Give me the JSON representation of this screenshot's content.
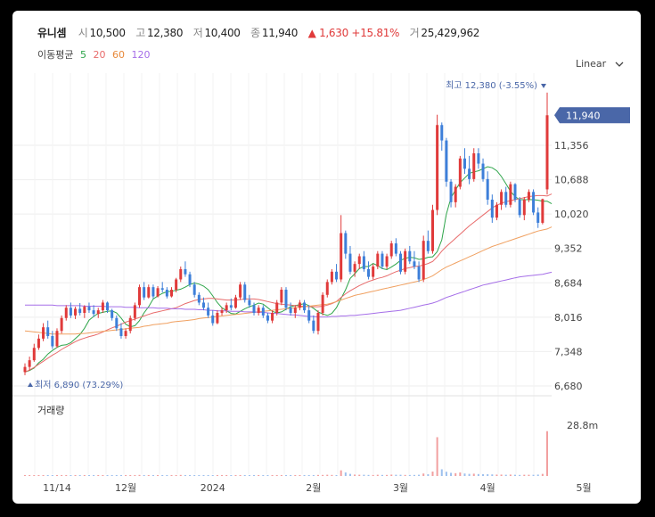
{
  "header": {
    "name": "유니셈",
    "open_label": "시",
    "open": "10,500",
    "high_label": "고",
    "high": "12,380",
    "low_label": "저",
    "low": "10,400",
    "close_label": "종",
    "close": "11,940",
    "change": "▲ 1,630 +15.81%",
    "volume_label": "거",
    "volume": "25,429,962"
  },
  "ma_legend": {
    "label": "이동평균",
    "p5": "5",
    "p20": "20",
    "p60": "60",
    "p120": "120"
  },
  "scale_select": {
    "value": "Linear"
  },
  "colors": {
    "up": "#e03a3a",
    "down": "#3d7fd9",
    "ma5": "#2ea54a",
    "ma20": "#e86b6b",
    "ma60": "#f0a060",
    "ma120": "#a56ee8",
    "badge": "#4a67a8"
  },
  "icons": {
    "high_marker": "triangle-down-icon",
    "low_marker": "triangle-up-icon",
    "dropdown": "chevron-down-icon"
  },
  "chart_data": {
    "type": "candlestick",
    "price_axis": {
      "ticks": [
        6680,
        7348,
        8016,
        8684,
        9352,
        10020,
        10688,
        11356
      ],
      "tick_labels": [
        "6,680",
        "7,348",
        "8,016",
        "8,684",
        "9,352",
        "10,020",
        "10,688",
        "11,356"
      ],
      "range": [
        6680,
        12390
      ]
    },
    "current_price": {
      "value": 11940,
      "label": "11,940"
    },
    "annotations": {
      "high": "최고 12,380 (-3.55%)",
      "low": "최저 6,890 (73.29%)"
    },
    "x_axis": {
      "labels": [
        "11/14",
        "12월",
        "2024",
        "2월",
        "3월",
        "4월",
        "5월"
      ],
      "label_index": [
        7,
        22,
        41,
        63,
        82,
        101,
        122
      ]
    },
    "volume_panel": {
      "title": "거래량",
      "tick_label": "28.8m",
      "max": 28.8
    },
    "ohlc": [
      [
        6950,
        7120,
        6890,
        7050
      ],
      [
        7050,
        7250,
        6980,
        7180
      ],
      [
        7180,
        7500,
        7150,
        7420
      ],
      [
        7420,
        7680,
        7380,
        7600
      ],
      [
        7600,
        7900,
        7550,
        7820
      ],
      [
        7820,
        7950,
        7600,
        7650
      ],
      [
        7650,
        7750,
        7400,
        7450
      ],
      [
        7450,
        7800,
        7420,
        7750
      ],
      [
        7750,
        8050,
        7700,
        8000
      ],
      [
        8000,
        8250,
        7950,
        8200
      ],
      [
        8200,
        8300,
        8000,
        8050
      ],
      [
        8050,
        8220,
        7980,
        8180
      ],
      [
        8180,
        8290,
        8050,
        8100
      ],
      [
        8100,
        8250,
        8000,
        8220
      ],
      [
        8220,
        8300,
        8100,
        8150
      ],
      [
        8150,
        8250,
        8020,
        8080
      ],
      [
        8080,
        8200,
        8000,
        8150
      ],
      [
        8150,
        8350,
        8100,
        8300
      ],
      [
        8300,
        8320,
        8100,
        8150
      ],
      [
        8150,
        8180,
        7950,
        8000
      ],
      [
        8000,
        8050,
        7750,
        7800
      ],
      [
        7800,
        7900,
        7600,
        7650
      ],
      [
        7650,
        7800,
        7600,
        7750
      ],
      [
        7750,
        8050,
        7700,
        8000
      ],
      [
        8000,
        8300,
        7950,
        8250
      ],
      [
        8250,
        8650,
        8200,
        8600
      ],
      [
        8600,
        8700,
        8350,
        8400
      ],
      [
        8400,
        8650,
        8380,
        8600
      ],
      [
        8600,
        8650,
        8380,
        8420
      ],
      [
        8420,
        8620,
        8400,
        8580
      ],
      [
        8580,
        8700,
        8500,
        8550
      ],
      [
        8550,
        8600,
        8380,
        8420
      ],
      [
        8420,
        8600,
        8400,
        8550
      ],
      [
        8550,
        8780,
        8500,
        8750
      ],
      [
        8750,
        9000,
        8700,
        8950
      ],
      [
        8950,
        9100,
        8800,
        8850
      ],
      [
        8850,
        8900,
        8600,
        8650
      ],
      [
        8650,
        8700,
        8400,
        8450
      ],
      [
        8450,
        8500,
        8250,
        8300
      ],
      [
        8300,
        8400,
        8150,
        8200
      ],
      [
        8200,
        8300,
        8000,
        8050
      ],
      [
        8050,
        8150,
        7850,
        7900
      ],
      [
        7900,
        8150,
        7880,
        8100
      ],
      [
        8100,
        8200,
        8050,
        8150
      ],
      [
        8150,
        8300,
        8100,
        8250
      ],
      [
        8250,
        8380,
        8150,
        8200
      ],
      [
        8200,
        8450,
        8180,
        8400
      ],
      [
        8400,
        8700,
        8350,
        8650
      ],
      [
        8650,
        8700,
        8300,
        8350
      ],
      [
        8350,
        8450,
        8200,
        8250
      ],
      [
        8250,
        8300,
        8050,
        8100
      ],
      [
        8100,
        8250,
        8050,
        8200
      ],
      [
        8200,
        8250,
        8000,
        8050
      ],
      [
        8050,
        8100,
        7900,
        7950
      ],
      [
        7950,
        8150,
        7900,
        8100
      ],
      [
        8100,
        8350,
        8050,
        8300
      ],
      [
        8300,
        8600,
        8250,
        8550
      ],
      [
        8550,
        8600,
        8150,
        8200
      ],
      [
        8200,
        8300,
        8050,
        8100
      ],
      [
        8100,
        8250,
        8000,
        8200
      ],
      [
        8200,
        8350,
        8150,
        8300
      ],
      [
        8300,
        8350,
        8100,
        8150
      ],
      [
        8150,
        8250,
        7900,
        7950
      ],
      [
        7950,
        8050,
        7700,
        7750
      ],
      [
        7750,
        8150,
        7680,
        8100
      ],
      [
        8100,
        8500,
        8050,
        8450
      ],
      [
        8450,
        8750,
        8400,
        8700
      ],
      [
        8700,
        8950,
        8650,
        8900
      ],
      [
        8900,
        9050,
        8700,
        8750
      ],
      [
        8750,
        10000,
        8700,
        9650
      ],
      [
        9650,
        9700,
        9150,
        9250
      ],
      [
        9250,
        9400,
        8850,
        8900
      ],
      [
        8900,
        9100,
        8800,
        9050
      ],
      [
        9050,
        9250,
        8950,
        9200
      ],
      [
        9200,
        9300,
        8900,
        8950
      ],
      [
        8950,
        9100,
        8750,
        8800
      ],
      [
        8800,
        9050,
        8750,
        9000
      ],
      [
        9000,
        9300,
        8950,
        9250
      ],
      [
        9250,
        9300,
        8950,
        9000
      ],
      [
        9000,
        9250,
        8950,
        9200
      ],
      [
        9200,
        9500,
        9150,
        9450
      ],
      [
        9450,
        9550,
        9200,
        9250
      ],
      [
        9250,
        9300,
        8850,
        8900
      ],
      [
        8900,
        9350,
        8850,
        9300
      ],
      [
        9300,
        9400,
        9050,
        9100
      ],
      [
        9100,
        9300,
        8950,
        9000
      ],
      [
        9000,
        9100,
        8700,
        8750
      ],
      [
        8750,
        9600,
        8700,
        9500
      ],
      [
        9500,
        9700,
        9250,
        9300
      ],
      [
        9300,
        10200,
        9250,
        10100
      ],
      [
        10100,
        11950,
        10000,
        11750
      ],
      [
        11750,
        11800,
        11250,
        11450
      ],
      [
        11450,
        11500,
        10550,
        10650
      ],
      [
        10650,
        10700,
        10150,
        10250
      ],
      [
        10250,
        10600,
        10150,
        10550
      ],
      [
        10550,
        11150,
        10500,
        11100
      ],
      [
        11100,
        11300,
        10800,
        10900
      ],
      [
        10900,
        11150,
        10600,
        10700
      ],
      [
        10700,
        11300,
        10650,
        11200
      ],
      [
        11200,
        11300,
        10900,
        11000
      ],
      [
        11000,
        11100,
        10650,
        10700
      ],
      [
        10700,
        10850,
        10200,
        10300
      ],
      [
        10300,
        10400,
        9850,
        9950
      ],
      [
        9950,
        10250,
        9900,
        10200
      ],
      [
        10200,
        10500,
        10100,
        10450
      ],
      [
        10450,
        10550,
        10150,
        10200
      ],
      [
        10200,
        10650,
        10150,
        10600
      ],
      [
        10600,
        10620,
        10250,
        10300
      ],
      [
        10300,
        10350,
        9950,
        10000
      ],
      [
        10000,
        10350,
        9900,
        10300
      ],
      [
        10300,
        10500,
        10250,
        10450
      ],
      [
        10450,
        10500,
        10000,
        10050
      ],
      [
        10050,
        10150,
        9750,
        9850
      ],
      [
        9850,
        10320,
        9820,
        10310
      ],
      [
        10500,
        12380,
        10400,
        11940
      ]
    ],
    "volume": [
      0.3,
      0.4,
      0.5,
      0.4,
      0.5,
      0.4,
      0.3,
      0.4,
      0.5,
      0.4,
      0.3,
      0.3,
      0.3,
      0.3,
      0.3,
      0.2,
      0.2,
      0.3,
      0.3,
      0.3,
      0.4,
      0.3,
      0.3,
      0.4,
      0.5,
      0.6,
      0.5,
      0.4,
      0.4,
      0.4,
      0.3,
      0.3,
      0.3,
      0.4,
      0.6,
      0.5,
      0.4,
      0.4,
      0.3,
      0.3,
      0.3,
      0.3,
      0.3,
      0.2,
      0.3,
      0.3,
      0.4,
      0.5,
      0.4,
      0.3,
      0.3,
      0.3,
      0.3,
      0.3,
      0.3,
      0.4,
      0.5,
      0.4,
      0.3,
      0.3,
      0.3,
      0.3,
      0.4,
      0.5,
      0.6,
      0.6,
      0.7,
      0.6,
      0.5,
      3.2,
      2.0,
      1.2,
      0.8,
      0.7,
      0.7,
      0.6,
      0.6,
      0.7,
      0.6,
      0.6,
      0.8,
      0.7,
      0.7,
      0.6,
      0.6,
      0.6,
      0.7,
      1.4,
      1.0,
      2.5,
      22.0,
      3.8,
      2.4,
      1.8,
      1.6,
      2.0,
      1.4,
      1.2,
      1.3,
      1.1,
      1.0,
      1.0,
      0.9,
      0.8,
      0.8,
      0.7,
      0.8,
      0.7,
      0.6,
      0.7,
      0.7,
      0.7,
      0.8,
      1.2,
      25.4
    ],
    "ma_series": [
      {
        "name": "5",
        "values": [
          6950,
          6980,
          7030,
          7130,
          7200,
          7300,
          7370,
          7430,
          7470,
          7480,
          7520,
          7600,
          7680,
          7800,
          7960,
          8030,
          8090,
          8110,
          8130,
          8140,
          8100,
          8000,
          7880,
          7830,
          7850,
          7950,
          8100,
          8220,
          8370,
          8430,
          8480,
          8510,
          8520,
          8540,
          8560,
          8600,
          8650,
          8680,
          8660,
          8620,
          8550,
          8430,
          8300,
          8200,
          8140,
          8090,
          8080,
          8130,
          8180,
          8220,
          8250,
          8290,
          8270,
          8200,
          8130,
          8100,
          8120,
          8170,
          8220,
          8240,
          8260,
          8280,
          8240,
          8190,
          8120,
          8080,
          8050,
          8090,
          8200,
          8380,
          8550,
          8770,
          8860,
          8960,
          9000,
          9000,
          9060,
          9020,
          8960,
          8940,
          8990,
          9050,
          9120,
          9160,
          9180,
          9170,
          9140,
          9150,
          9180,
          9190,
          9290,
          9520,
          10020,
          10340,
          10490,
          10630,
          10720,
          10810,
          10840,
          10860,
          10900,
          10940,
          10920,
          10860,
          10750,
          10610,
          10460,
          10360,
          10300,
          10300,
          10300,
          10300,
          10290,
          10270,
          10270,
          10220
        ]
      },
      {
        "name": "20",
        "values": [
          6950,
          6990,
          7040,
          7100,
          7160,
          7220,
          7280,
          7330,
          7390,
          7440,
          7490,
          7540,
          7580,
          7610,
          7640,
          7660,
          7690,
          7730,
          7770,
          7810,
          7840,
          7880,
          7920,
          7950,
          7980,
          8010,
          8040,
          8070,
          8100,
          8120,
          8140,
          8160,
          8180,
          8200,
          8240,
          8280,
          8310,
          8340,
          8360,
          8370,
          8380,
          8380,
          8370,
          8360,
          8350,
          8350,
          8350,
          8360,
          8370,
          8370,
          8370,
          8360,
          8340,
          8320,
          8300,
          8280,
          8270,
          8260,
          8250,
          8240,
          8230,
          8230,
          8220,
          8220,
          8220,
          8230,
          8250,
          8280,
          8320,
          8400,
          8470,
          8530,
          8580,
          8630,
          8670,
          8710,
          8740,
          8770,
          8790,
          8820,
          8860,
          8900,
          8930,
          8960,
          8980,
          9000,
          9010,
          9030,
          9060,
          9100,
          9190,
          9300,
          9390,
          9470,
          9550,
          9630,
          9710,
          9790,
          9860,
          9930,
          10000,
          10070,
          10140,
          10190,
          10230,
          10260,
          10280,
          10300,
          10320,
          10340,
          10360,
          10370,
          10380,
          10380,
          10370,
          10410
        ]
      },
      {
        "name": "60",
        "values": [
          7750,
          7740,
          7730,
          7720,
          7710,
          7700,
          7690,
          7690,
          7690,
          7690,
          7690,
          7690,
          7700,
          7700,
          7710,
          7720,
          7730,
          7740,
          7750,
          7760,
          7770,
          7780,
          7790,
          7800,
          7810,
          7820,
          7840,
          7850,
          7870,
          7880,
          7890,
          7900,
          7920,
          7930,
          7940,
          7950,
          7960,
          7970,
          7990,
          8000,
          8010,
          8020,
          8030,
          8040,
          8050,
          8060,
          8070,
          8080,
          8090,
          8100,
          8110,
          8120,
          8130,
          8140,
          8150,
          8160,
          8170,
          8180,
          8190,
          8200,
          8210,
          8220,
          8230,
          8240,
          8250,
          8260,
          8270,
          8290,
          8320,
          8350,
          8380,
          8410,
          8440,
          8460,
          8480,
          8500,
          8520,
          8540,
          8560,
          8580,
          8600,
          8620,
          8640,
          8660,
          8680,
          8700,
          8720,
          8750,
          8780,
          8820,
          8880,
          8940,
          8990,
          9030,
          9070,
          9110,
          9150,
          9190,
          9230,
          9270,
          9310,
          9350,
          9390,
          9420,
          9450,
          9480,
          9510,
          9540,
          9570,
          9600,
          9630,
          9660,
          9690,
          9710,
          9730,
          9770
        ]
      },
      {
        "name": "120",
        "values": [
          8250,
          8250,
          8250,
          8250,
          8250,
          8250,
          8250,
          8240,
          8240,
          8240,
          8240,
          8240,
          8240,
          8230,
          8230,
          8230,
          8230,
          8230,
          8220,
          8220,
          8220,
          8220,
          8210,
          8210,
          8210,
          8200,
          8200,
          8200,
          8200,
          8190,
          8190,
          8190,
          8180,
          8180,
          8180,
          8170,
          8170,
          8170,
          8160,
          8160,
          8150,
          8150,
          8140,
          8140,
          8140,
          8130,
          8130,
          8130,
          8120,
          8120,
          8120,
          8110,
          8110,
          8100,
          8090,
          8090,
          8080,
          8070,
          8060,
          8060,
          8050,
          8040,
          8030,
          8030,
          8020,
          8020,
          8020,
          8030,
          8030,
          8040,
          8040,
          8050,
          8050,
          8060,
          8070,
          8080,
          8090,
          8100,
          8110,
          8120,
          8130,
          8140,
          8150,
          8170,
          8190,
          8210,
          8230,
          8250,
          8270,
          8290,
          8320,
          8360,
          8400,
          8430,
          8460,
          8490,
          8520,
          8550,
          8580,
          8610,
          8640,
          8660,
          8680,
          8700,
          8720,
          8740,
          8760,
          8780,
          8800,
          8810,
          8820,
          8830,
          8840,
          8850,
          8870,
          8890
        ]
      }
    ]
  }
}
